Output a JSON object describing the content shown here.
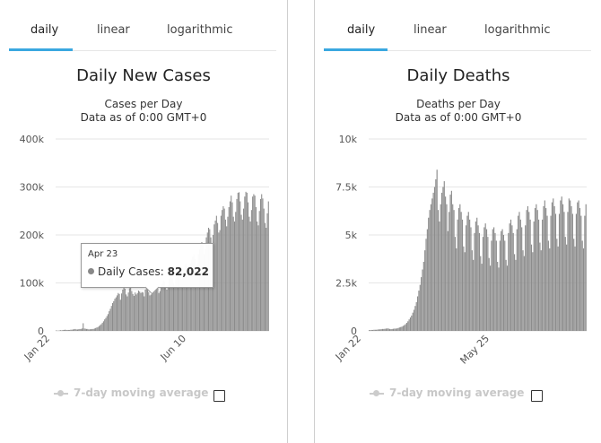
{
  "tabs": [
    "daily",
    "linear",
    "logarithmic"
  ],
  "legend_label": "7-day moving average",
  "colors": {
    "bars": "#8c8c8c",
    "tab_active": "#3aa8e0",
    "grid": "#e6e6e6"
  },
  "tooltip": {
    "date": "Apr 23",
    "series": "Daily Cases",
    "value": "82,022"
  },
  "chart_data": [
    {
      "type": "bar",
      "title": "Daily New Cases",
      "subtitle": "Cases per Day",
      "subtitle2": "Data as of 0:00 GMT+0",
      "y_ticks": [
        "0",
        "100k",
        "200k",
        "300k",
        "400k"
      ],
      "x_ticks": [
        "Jan 22",
        "Jun 10"
      ],
      "ylim": [
        0,
        400000
      ],
      "grid": true,
      "values": [
        1000,
        500,
        500,
        1000,
        1500,
        1000,
        2000,
        2000,
        2500,
        2000,
        2000,
        2000,
        2000,
        2500,
        2500,
        3000,
        3500,
        4000,
        3000,
        3000,
        3500,
        4000,
        4000,
        5000,
        16000,
        5000,
        4500,
        4000,
        4000,
        3000,
        3500,
        3500,
        4000,
        4000,
        5000,
        6000,
        7000,
        8000,
        10000,
        12000,
        14000,
        17000,
        20000,
        24000,
        27000,
        31000,
        35000,
        41000,
        46000,
        52000,
        58000,
        62000,
        67000,
        70000,
        74000,
        79000,
        77000,
        65000,
        78000,
        86000,
        95000,
        88000,
        76000,
        72000,
        80000,
        89000,
        91000,
        83000,
        77000,
        73000,
        80000,
        76000,
        79000,
        84000,
        82000,
        79000,
        81000,
        80000,
        72000,
        86000,
        94000,
        89000,
        81000,
        74000,
        76000,
        86000,
        82000,
        88000,
        96000,
        96000,
        88000,
        79000,
        83000,
        91000,
        98000,
        105000,
        103000,
        92000,
        86000,
        95000,
        108000,
        112000,
        115000,
        110000,
        100000,
        95000,
        110000,
        120000,
        125000,
        126000,
        123000,
        108000,
        115000,
        130000,
        138000,
        140000,
        135000,
        118000,
        120000,
        140000,
        148000,
        155000,
        160000,
        150000,
        133000,
        140000,
        160000,
        170000,
        182000,
        185000,
        178000,
        160000,
        170000,
        195000,
        205000,
        215000,
        212000,
        195000,
        182000,
        200000,
        222000,
        230000,
        240000,
        225000,
        205000,
        210000,
        240000,
        252000,
        260000,
        255000,
        232000,
        218000,
        238000,
        258000,
        270000,
        282000,
        268000,
        238000,
        228000,
        248000,
        275000,
        288000,
        289000,
        270000,
        242000,
        232000,
        255000,
        280000,
        290000,
        288000,
        268000,
        238000,
        228000,
        252000,
        280000,
        285000,
        282000,
        258000,
        228000,
        220000,
        250000,
        275000,
        285000,
        276000,
        255000,
        225000,
        215000,
        245000,
        270000
      ]
    },
    {
      "type": "bar",
      "title": "Daily Deaths",
      "subtitle": "Deaths per Day",
      "subtitle2": "Data as of 0:00 GMT+0",
      "y_ticks": [
        "0",
        "2.5k",
        "5k",
        "7.5k",
        "10k"
      ],
      "x_ticks": [
        "Jan 22",
        "May 25"
      ],
      "ylim": [
        0,
        10000
      ],
      "grid": true,
      "values": [
        40,
        40,
        50,
        50,
        60,
        60,
        60,
        70,
        80,
        80,
        90,
        100,
        100,
        110,
        120,
        130,
        120,
        100,
        90,
        100,
        110,
        120,
        120,
        130,
        150,
        180,
        200,
        220,
        260,
        300,
        350,
        420,
        500,
        600,
        700,
        800,
        950,
        1100,
        1300,
        1500,
        1800,
        2100,
        2400,
        2800,
        3200,
        3600,
        4200,
        4800,
        5300,
        5900,
        6300,
        6600,
        6900,
        7200,
        7500,
        7900,
        8400,
        6300,
        5700,
        6600,
        7200,
        7500,
        7800,
        7000,
        6600,
        5200,
        6200,
        7100,
        7300,
        6600,
        6300,
        4900,
        4300,
        5800,
        6400,
        6600,
        6200,
        5800,
        4400,
        4100,
        5500,
        6000,
        6200,
        5800,
        5400,
        4200,
        3700,
        5100,
        5700,
        5900,
        5500,
        5100,
        3900,
        3500,
        4900,
        5400,
        5600,
        5300,
        4900,
        3800,
        3400,
        4700,
        5300,
        5400,
        5100,
        4700,
        3600,
        3300,
        4700,
        5200,
        5300,
        5000,
        4700,
        3700,
        3400,
        5100,
        5600,
        5800,
        5500,
        5100,
        4000,
        3700,
        5300,
        6000,
        6200,
        5800,
        5400,
        4200,
        3900,
        5500,
        6300,
        6500,
        6200,
        5800,
        4500,
        4100,
        5700,
        6400,
        6600,
        6300,
        5800,
        4600,
        4200,
        5800,
        6500,
        6800,
        6400,
        6000,
        4700,
        4300,
        6000,
        6700,
        6900,
        6500,
        6100,
        4800,
        4400,
        6100,
        6800,
        7000,
        6600,
        6200,
        4900,
        4500,
        6200,
        6900,
        6800,
        6500,
        6100,
        4800,
        4400,
        6100,
        6700,
        6800,
        6400,
        6000,
        4700,
        4300,
        6000,
        6600
      ]
    }
  ]
}
